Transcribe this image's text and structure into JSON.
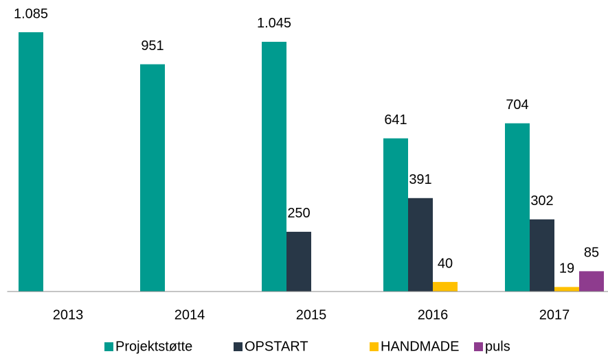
{
  "chart_data": {
    "type": "bar",
    "categories": [
      "2013",
      "2014",
      "2015",
      "2016",
      "2017"
    ],
    "series": [
      {
        "name": "Projektstøtte",
        "color": "#009b8f",
        "values": [
          1085,
          951,
          1045,
          641,
          704
        ],
        "value_labels": [
          "1.085",
          "951",
          "1.045",
          "641",
          "704"
        ]
      },
      {
        "name": "OPSTART",
        "color": "#283747",
        "values": [
          null,
          null,
          250,
          391,
          302
        ]
      },
      {
        "name": "HANDMADE",
        "color": "#ffc000",
        "values": [
          null,
          null,
          null,
          40,
          19
        ]
      },
      {
        "name": "puls",
        "color": "#8e3c8e",
        "values": [
          null,
          null,
          null,
          null,
          85
        ]
      }
    ],
    "legend": "bottom"
  }
}
